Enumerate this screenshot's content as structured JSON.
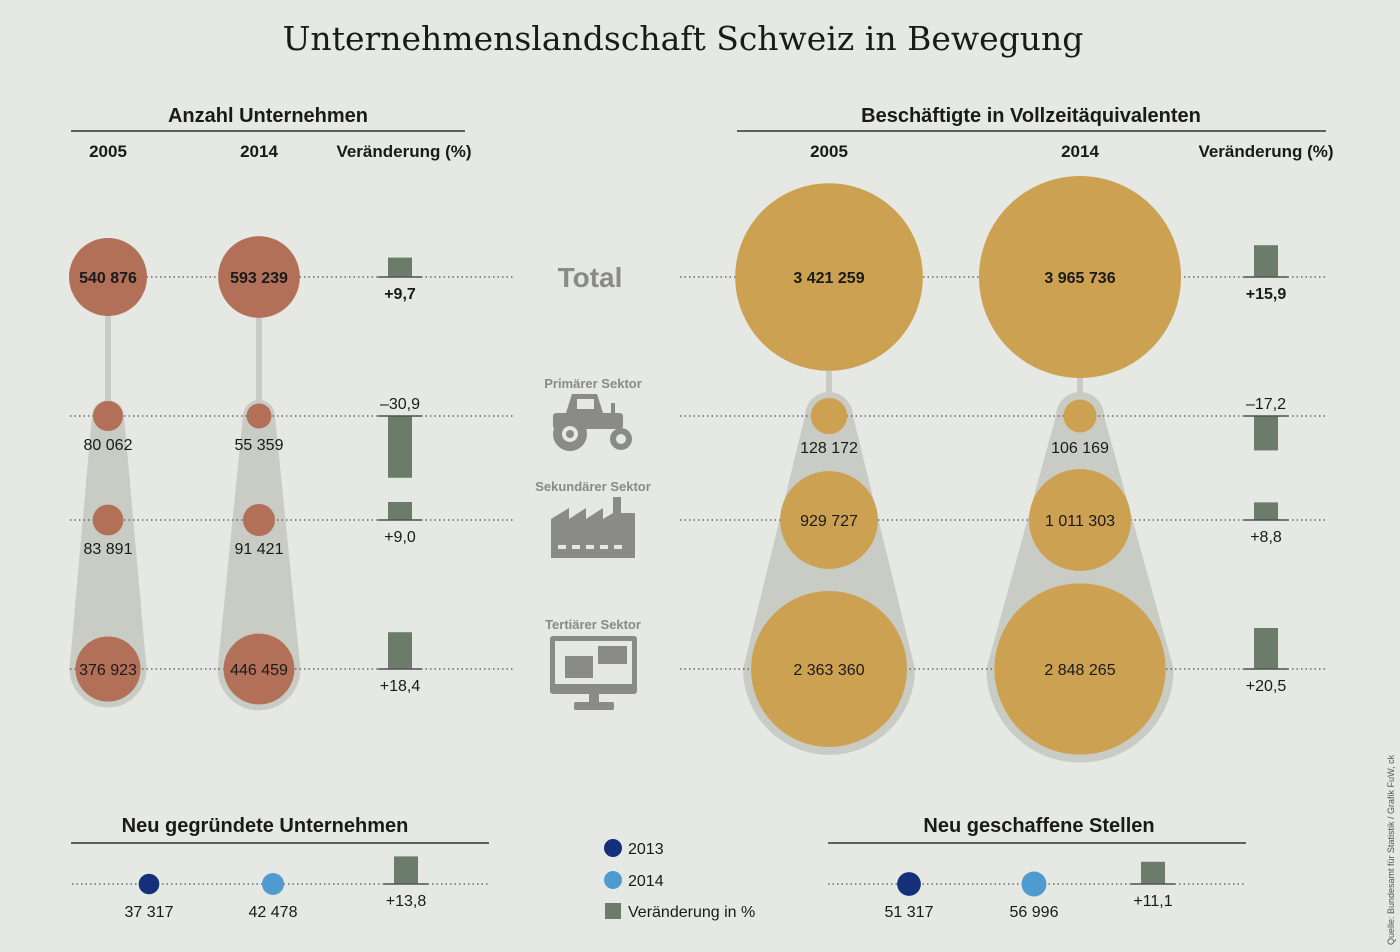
{
  "title": "Unternehmenslandschaft Schweiz in Bewegung",
  "firms": {
    "heading": "Anzahl Unternehmen",
    "col_2005": "2005",
    "col_2014": "2014",
    "col_change": "Veränderung (%)"
  },
  "jobs": {
    "heading": "Beschäftigte in Vollzeitäquivalenten",
    "col_2005": "2005",
    "col_2014": "2014",
    "col_change": "Veränderung (%)"
  },
  "rows": {
    "total": "Total",
    "primary": "Primärer Sektor",
    "secondary": "Sekundärer Sektor",
    "tertiary": "Tertiärer Sektor"
  },
  "new_firms": {
    "heading": "Neu gegründete Unternehmen"
  },
  "new_jobs": {
    "heading": "Neu geschaffene Stellen"
  },
  "legend": {
    "y2013": "2013",
    "y2014": "2014",
    "change": "Veränderung in %"
  },
  "source": "Quelle: Bundesamt für Statistik / Grafik FuW, ck",
  "colors": {
    "firms": "#b27058",
    "jobs": "#cca152",
    "bar": "#6c7c6a",
    "connector": "#c8ccc4",
    "y2013": "#15307a",
    "y2014": "#4f9bd0"
  },
  "chart_data": [
    {
      "type": "bubble",
      "title": "Anzahl Unternehmen",
      "categories": [
        "Total",
        "Primärer Sektor",
        "Sekundärer Sektor",
        "Tertiärer Sektor"
      ],
      "series": [
        {
          "name": "2005",
          "values": [
            540876,
            80062,
            83891,
            376923
          ],
          "labels": [
            "540 876",
            "80 062",
            "83 891",
            "376 923"
          ]
        },
        {
          "name": "2014",
          "values": [
            593239,
            55359,
            91421,
            446459
          ],
          "labels": [
            "593 239",
            "55 359",
            "91 421",
            "446 459"
          ]
        }
      ],
      "change": {
        "name": "Veränderung (%)",
        "values": [
          9.7,
          -30.9,
          9.0,
          18.4
        ],
        "labels": [
          "+9,7",
          "–30,9",
          "+9,0",
          "+18,4"
        ]
      }
    },
    {
      "type": "bubble",
      "title": "Beschäftigte in Vollzeitäquivalenten",
      "categories": [
        "Total",
        "Primärer Sektor",
        "Sekundärer Sektor",
        "Tertiärer Sektor"
      ],
      "series": [
        {
          "name": "2005",
          "values": [
            3421259,
            128172,
            929727,
            2363360
          ],
          "labels": [
            "3 421 259",
            "128 172",
            "929 727",
            "2 363 360"
          ]
        },
        {
          "name": "2014",
          "values": [
            3965736,
            106169,
            1011303,
            2848265
          ],
          "labels": [
            "3 965 736",
            "106 169",
            "1 011 303",
            "2 848 265"
          ]
        }
      ],
      "change": {
        "name": "Veränderung (%)",
        "values": [
          15.9,
          -17.2,
          8.8,
          20.5
        ],
        "labels": [
          "+15,9",
          "–17,2",
          "+8,8",
          "+20,5"
        ]
      }
    },
    {
      "type": "bubble",
      "title": "Neu gegründete Unternehmen",
      "series": [
        {
          "name": "2013",
          "values": [
            37317
          ],
          "labels": [
            "37 317"
          ]
        },
        {
          "name": "2014",
          "values": [
            42478
          ],
          "labels": [
            "42 478"
          ]
        }
      ],
      "change": {
        "name": "Veränderung in %",
        "values": [
          13.8
        ],
        "labels": [
          "+13,8"
        ]
      }
    },
    {
      "type": "bubble",
      "title": "Neu geschaffene Stellen",
      "series": [
        {
          "name": "2013",
          "values": [
            51317
          ],
          "labels": [
            "51 317"
          ]
        },
        {
          "name": "2014",
          "values": [
            56996
          ],
          "labels": [
            "56 996"
          ]
        }
      ],
      "change": {
        "name": "Veränderung in %",
        "values": [
          11.1
        ],
        "labels": [
          "+11,1"
        ]
      }
    }
  ]
}
